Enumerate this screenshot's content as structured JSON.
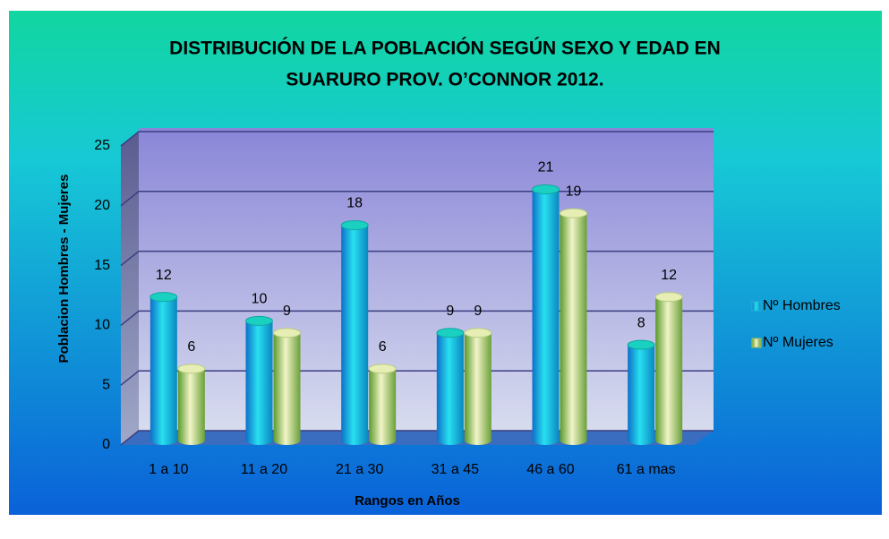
{
  "chart_data": {
    "type": "bar",
    "title": [
      "DISTRIBUCIÓN DE LA POBLACIÓN SEGÚN SEXO Y EDAD EN",
      "SUARURO PROV.  O’CONNOR 2012."
    ],
    "x_label": "Rangos en Años",
    "y_label": "Poblacion Hombres - Mujeres",
    "categories": [
      "1 a 10",
      "11 a 20",
      "21 a 30",
      "31 a 45",
      "46 a 60",
      "61 a mas"
    ],
    "series": [
      {
        "name": "Nº Hombres",
        "color": "#1fb4dc",
        "values": [
          12,
          10,
          18,
          9,
          21,
          8
        ]
      },
      {
        "name": "Nº Mujeres",
        "color": "#9fbf5e",
        "values": [
          6,
          9,
          6,
          9,
          19,
          12
        ]
      }
    ],
    "ylim": [
      0,
      25
    ],
    "yticks": [
      0,
      5,
      10,
      15,
      20,
      25
    ],
    "grid": true,
    "legend": "right"
  }
}
